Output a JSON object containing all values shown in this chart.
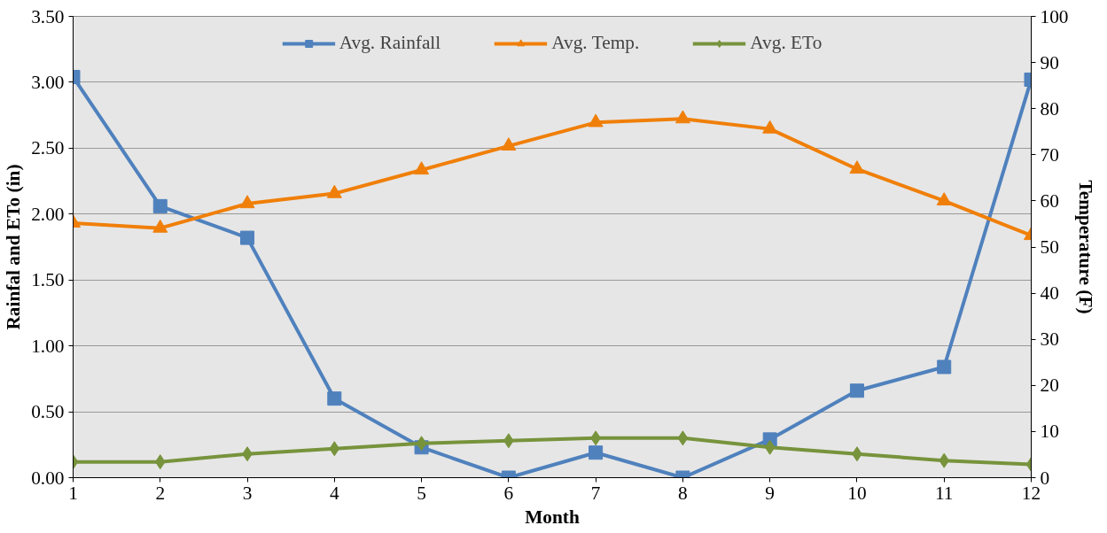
{
  "chart_data": {
    "type": "line",
    "xlabel": "Month",
    "ylabel": "Rainfal and ETo (in)",
    "y2label": "Temperature (F)",
    "x": [
      1,
      2,
      3,
      4,
      5,
      6,
      7,
      8,
      9,
      10,
      11,
      12
    ],
    "series": [
      {
        "name": "Avg. Rainfall",
        "color": "#4f81bd",
        "marker": "square",
        "values": [
          3.04,
          2.06,
          1.82,
          0.6,
          0.23,
          0.0,
          0.19,
          0.0,
          0.29,
          0.66,
          0.84,
          3.02
        ]
      },
      {
        "name": "Avg. Temp.",
        "color": "#f07f09",
        "marker": "triangle",
        "axis": "y2",
        "values": [
          55.2,
          54.1,
          59.4,
          61.6,
          66.7,
          71.9,
          77.0,
          77.8,
          75.6,
          66.9,
          60.0,
          52.5
        ]
      },
      {
        "name": "Avg. ETo",
        "color": "#77933c",
        "marker": "diamond",
        "values": [
          0.12,
          0.12,
          0.18,
          0.22,
          0.26,
          0.28,
          0.3,
          0.3,
          0.23,
          0.18,
          0.13,
          0.1
        ]
      }
    ],
    "xlim": [
      1,
      12
    ],
    "xticks": [
      1,
      2,
      3,
      4,
      5,
      6,
      7,
      8,
      9,
      10,
      11,
      12
    ],
    "ylim": [
      0,
      3.5
    ],
    "yticks": [
      {
        "value": 0,
        "label": "0.00"
      },
      {
        "value": 0.5,
        "label": "0.50"
      },
      {
        "value": 1,
        "label": "1.00"
      },
      {
        "value": 1.5,
        "label": "1.50"
      },
      {
        "value": 2,
        "label": "2.00"
      },
      {
        "value": 2.5,
        "label": "2.50"
      },
      {
        "value": 3,
        "label": "3.00"
      },
      {
        "value": 3.5,
        "label": "3.50"
      }
    ],
    "y2lim": [
      0,
      100
    ],
    "y2ticks": [
      0,
      10,
      20,
      30,
      40,
      50,
      60,
      70,
      80,
      90,
      100
    ],
    "grid": "y",
    "legend": "top",
    "line_style": "solid"
  }
}
